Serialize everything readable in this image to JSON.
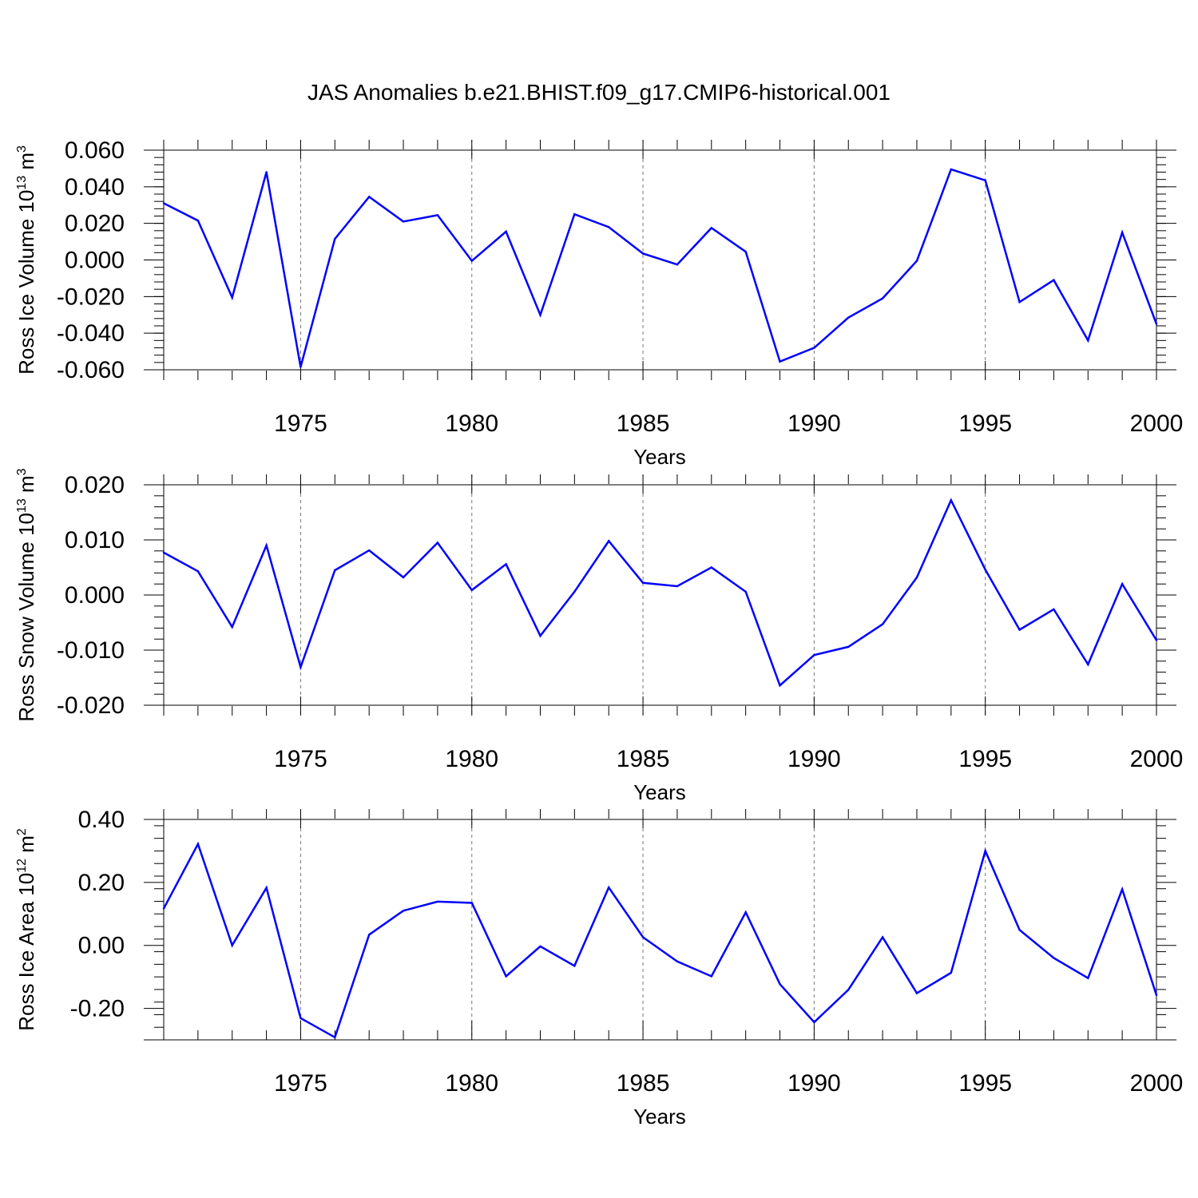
{
  "figure": {
    "title": "JAS Anomalies b.e21.BHIST.f09_g17.CMIP6-historical.001"
  },
  "colors": {
    "line": "#0000ff",
    "axis": "#000000",
    "grid": "#777777",
    "background": "#ffffff"
  },
  "chart_data": [
    {
      "type": "line",
      "title": "",
      "xlabel": "Years",
      "ylabel": {
        "prefix": "Ross Ice Volume 10",
        "exp": "13",
        "unit": " m",
        "unit_exp": "3"
      },
      "xlim": [
        1971,
        2000
      ],
      "ylim": [
        -0.06,
        0.06
      ],
      "x_ticks": [
        1975,
        1980,
        1985,
        1990,
        1995,
        2000
      ],
      "x_tick_labels": [
        "1975",
        "1980",
        "1985",
        "1990",
        "1995",
        "2000"
      ],
      "y_ticks": [
        0.06,
        0.04,
        0.02,
        0.0,
        -0.02,
        -0.04,
        -0.06
      ],
      "y_tick_labels": [
        "0.060",
        "0.040",
        "0.020",
        "0.000",
        "-0.020",
        "-0.040",
        "-0.060"
      ],
      "grid": "vertical dashed at major x ticks",
      "x": [
        1971,
        1972,
        1973,
        1974,
        1975,
        1976,
        1977,
        1978,
        1979,
        1980,
        1981,
        1982,
        1983,
        1984,
        1985,
        1986,
        1987,
        1988,
        1989,
        1990,
        1991,
        1992,
        1993,
        1994,
        1995,
        1996,
        1997,
        1998,
        1999,
        2000
      ],
      "series": [
        {
          "values": [
            0.031,
            0.0215,
            -0.0205,
            0.048,
            -0.0585,
            0.0115,
            0.0345,
            0.021,
            0.0245,
            -0.0005,
            0.0155,
            -0.03,
            0.025,
            0.018,
            0.0035,
            -0.0025,
            0.0175,
            0.0045,
            -0.0555,
            -0.048,
            -0.0315,
            -0.021,
            -0.0005,
            0.0495,
            0.0435,
            -0.023,
            -0.011,
            -0.044,
            0.015,
            -0.035
          ]
        }
      ]
    },
    {
      "type": "line",
      "title": "",
      "xlabel": "Years",
      "ylabel": {
        "prefix": "Ross Snow Volume 10",
        "exp": "13",
        "unit": " m",
        "unit_exp": "3"
      },
      "xlim": [
        1971,
        2000
      ],
      "ylim": [
        -0.02,
        0.02
      ],
      "x_ticks": [
        1975,
        1980,
        1985,
        1990,
        1995,
        2000
      ],
      "x_tick_labels": [
        "1975",
        "1980",
        "1985",
        "1990",
        "1995",
        "2000"
      ],
      "y_ticks": [
        0.02,
        0.01,
        0.0,
        -0.01,
        -0.02
      ],
      "y_tick_labels": [
        "0.020",
        "0.010",
        "0.000",
        "-0.010",
        "-0.020"
      ],
      "grid": "vertical dashed at major x ticks",
      "x": [
        1971,
        1972,
        1973,
        1974,
        1975,
        1976,
        1977,
        1978,
        1979,
        1980,
        1981,
        1982,
        1983,
        1984,
        1985,
        1986,
        1987,
        1988,
        1989,
        1990,
        1991,
        1992,
        1993,
        1994,
        1995,
        1996,
        1997,
        1998,
        1999,
        2000
      ],
      "series": [
        {
          "values": [
            0.0077,
            0.0043,
            -0.0058,
            0.009,
            -0.0131,
            0.0045,
            0.0081,
            0.0032,
            0.0095,
            0.0009,
            0.0056,
            -0.0074,
            0.0006,
            0.0098,
            0.0022,
            0.0016,
            0.005,
            0.0006,
            -0.0164,
            -0.0109,
            -0.0094,
            -0.0053,
            0.0032,
            0.0172,
            0.0046,
            -0.0063,
            -0.0026,
            -0.0126,
            0.002,
            -0.0082
          ]
        }
      ]
    },
    {
      "type": "line",
      "title": "",
      "xlabel": "Years",
      "ylabel": {
        "prefix": "Ross Ice Area 10",
        "exp": "12",
        "unit": " m",
        "unit_exp": "2"
      },
      "xlim": [
        1971,
        2000
      ],
      "ylim": [
        -0.3,
        0.4
      ],
      "x_ticks": [
        1975,
        1980,
        1985,
        1990,
        1995,
        2000
      ],
      "x_tick_labels": [
        "1975",
        "1980",
        "1985",
        "1990",
        "1995",
        "2000"
      ],
      "y_ticks": [
        0.4,
        0.2,
        0.0,
        -0.2
      ],
      "y_tick_labels": [
        "0.40",
        "0.20",
        "0.00",
        "-0.20"
      ],
      "grid": "vertical dashed at major x ticks",
      "x": [
        1971,
        1972,
        1973,
        1974,
        1975,
        1976,
        1977,
        1978,
        1979,
        1980,
        1981,
        1982,
        1983,
        1984,
        1985,
        1986,
        1987,
        1988,
        1989,
        1990,
        1991,
        1992,
        1993,
        1994,
        1995,
        1996,
        1997,
        1998,
        1999,
        2000
      ],
      "series": [
        {
          "values": [
            0.117,
            0.322,
            0.0,
            0.183,
            -0.231,
            -0.292,
            0.034,
            0.11,
            0.139,
            0.135,
            -0.098,
            -0.003,
            -0.065,
            0.184,
            0.026,
            -0.051,
            -0.098,
            0.105,
            -0.123,
            -0.244,
            -0.141,
            0.026,
            -0.152,
            -0.087,
            0.3,
            0.049,
            -0.04,
            -0.104,
            0.178,
            -0.158
          ]
        }
      ]
    }
  ]
}
